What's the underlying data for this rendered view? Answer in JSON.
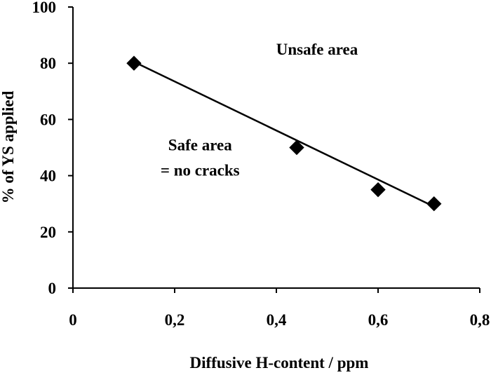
{
  "chart_data": {
    "type": "scatter",
    "title": "",
    "xlabel": "Diffusive H-content / ppm",
    "ylabel": "%  of YS applied",
    "xlim": [
      0,
      0.8
    ],
    "ylim": [
      0,
      100
    ],
    "x_ticks": [
      0,
      0.2,
      0.4,
      0.6,
      0.8
    ],
    "x_tick_labels": [
      "0",
      "0,2",
      "0,4",
      "0,6",
      "0,8"
    ],
    "y_ticks": [
      0,
      20,
      40,
      60,
      80,
      100
    ],
    "y_tick_labels": [
      "0",
      "20",
      "40",
      "60",
      "80",
      "100"
    ],
    "grid": false,
    "legend": "none",
    "series": [
      {
        "marker": "diamond",
        "color": "#000000",
        "x": [
          0.12,
          0.44,
          0.6,
          0.71
        ],
        "y": [
          80,
          50,
          35,
          30
        ]
      }
    ],
    "trendline": {
      "type": "linear",
      "color": "#000000",
      "x": [
        0.12,
        0.71
      ],
      "y": [
        80.5,
        29
      ]
    },
    "annotations": [
      {
        "text": "Unsafe area",
        "x": 0.48,
        "y": 83
      },
      {
        "text": "Safe area",
        "x": 0.25,
        "y": 49
      },
      {
        "text": "= no cracks",
        "x": 0.25,
        "y": 40
      }
    ]
  }
}
